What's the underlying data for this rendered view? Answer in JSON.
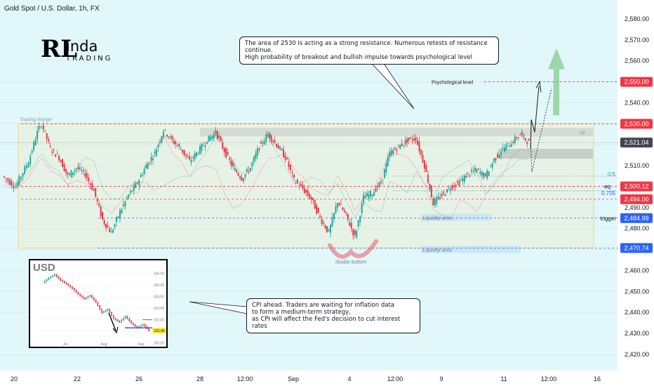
{
  "header": {
    "title": "Gold Spot / U.S. Dollar, 1h, FX"
  },
  "logo": {
    "mark": "RL",
    "name": "inda",
    "sub": "TRADING"
  },
  "notes": {
    "resistance": "The area of 2530 is acting as a strong resistance. Numerous retests of resistance continue.\nHigh probability of breakout and bullish impulse towards psychological level",
    "cpi": "CPI ahead. Traders are waiting for inflation data\nto form a medium-term strategy,\nas CPI will affect the Fed's decision to cut interest rates"
  },
  "colors": {
    "background": "#e2f7fa",
    "up": "#26a69a",
    "down": "#e53946",
    "level_red": "#f23645",
    "level_blue": "#2962ff",
    "range": "#f7d38a"
  },
  "chart_data": {
    "type": "candlestick",
    "title": "Gold Spot / U.S. Dollar, 1h, FX",
    "ylim": [
      2415,
      2585
    ],
    "y_ticks": [
      2420,
      2430,
      2440,
      2450,
      2460,
      2470,
      2480,
      2490,
      2500,
      2510,
      2520,
      2530,
      2540,
      2550,
      2560,
      2570,
      2580
    ],
    "x_ticks": [
      "20",
      "22",
      "26",
      "28",
      "12:00",
      "Sep",
      "4",
      "12:00",
      "9",
      "11",
      "12:00",
      "16"
    ],
    "current_price": 2521.04,
    "price_labels": [
      {
        "value": 2550.0,
        "text": "2,550.00",
        "color": "#f23645"
      },
      {
        "value": 2530.0,
        "text": "2,530.00",
        "color": "#f23645"
      },
      {
        "value": 2521.04,
        "text": "2,521.04",
        "color": "#434651"
      },
      {
        "value": 2500.12,
        "text": "2,500.12",
        "color": "#f23645"
      },
      {
        "value": 2494.0,
        "text": "2,494.00",
        "color": "#f23645"
      },
      {
        "value": 2484.99,
        "text": "2,484.99",
        "color": "#2962ff"
      },
      {
        "value": 2470.74,
        "text": "2,470.74",
        "color": "#2962ff"
      }
    ],
    "annotations": [
      {
        "text": "Trading Range",
        "kind": "range-label"
      },
      {
        "text": "Psychological level",
        "kind": "level"
      },
      {
        "text": "Liquidity area",
        "kind": "zone-upper"
      },
      {
        "text": "Liquidity area",
        "kind": "zone-lower"
      },
      {
        "text": "double bottom",
        "kind": "pattern"
      },
      {
        "text": "eq",
        "kind": "level"
      },
      {
        "text": "0.705",
        "kind": "fib"
      },
      {
        "text": "0.5",
        "kind": "fib"
      },
      {
        "text": "trigger",
        "kind": "level"
      },
      {
        "text": "ob",
        "kind": "zone"
      }
    ],
    "price_path": [
      {
        "x": 0,
        "y": 2505
      },
      {
        "x": 3,
        "y": 2500
      },
      {
        "x": 6,
        "y": 2512
      },
      {
        "x": 8,
        "y": 2526
      },
      {
        "x": 9,
        "y": 2530
      },
      {
        "x": 11,
        "y": 2518
      },
      {
        "x": 13,
        "y": 2514
      },
      {
        "x": 15,
        "y": 2505
      },
      {
        "x": 17,
        "y": 2509
      },
      {
        "x": 19,
        "y": 2506
      },
      {
        "x": 21,
        "y": 2498
      },
      {
        "x": 23,
        "y": 2484
      },
      {
        "x": 25,
        "y": 2478
      },
      {
        "x": 27,
        "y": 2488
      },
      {
        "x": 29,
        "y": 2496
      },
      {
        "x": 31,
        "y": 2502
      },
      {
        "x": 33,
        "y": 2510
      },
      {
        "x": 35,
        "y": 2516
      },
      {
        "x": 37,
        "y": 2527
      },
      {
        "x": 39,
        "y": 2522
      },
      {
        "x": 41,
        "y": 2518
      },
      {
        "x": 43,
        "y": 2512
      },
      {
        "x": 45,
        "y": 2517
      },
      {
        "x": 47,
        "y": 2522
      },
      {
        "x": 49,
        "y": 2526
      },
      {
        "x": 51,
        "y": 2517
      },
      {
        "x": 53,
        "y": 2509
      },
      {
        "x": 55,
        "y": 2504
      },
      {
        "x": 57,
        "y": 2509
      },
      {
        "x": 59,
        "y": 2519
      },
      {
        "x": 61,
        "y": 2525
      },
      {
        "x": 63,
        "y": 2520
      },
      {
        "x": 65,
        "y": 2514
      },
      {
        "x": 67,
        "y": 2503
      },
      {
        "x": 69,
        "y": 2499
      },
      {
        "x": 71,
        "y": 2494
      },
      {
        "x": 73,
        "y": 2485
      },
      {
        "x": 75,
        "y": 2478
      },
      {
        "x": 77,
        "y": 2493
      },
      {
        "x": 79,
        "y": 2486
      },
      {
        "x": 81,
        "y": 2476
      },
      {
        "x": 83,
        "y": 2495
      },
      {
        "x": 85,
        "y": 2497
      },
      {
        "x": 87,
        "y": 2502
      },
      {
        "x": 89,
        "y": 2516
      },
      {
        "x": 91,
        "y": 2519
      },
      {
        "x": 93,
        "y": 2522
      },
      {
        "x": 95,
        "y": 2523
      },
      {
        "x": 97,
        "y": 2510
      },
      {
        "x": 99,
        "y": 2492
      },
      {
        "x": 101,
        "y": 2496
      },
      {
        "x": 103,
        "y": 2500
      },
      {
        "x": 105,
        "y": 2502
      },
      {
        "x": 107,
        "y": 2506
      },
      {
        "x": 109,
        "y": 2508
      },
      {
        "x": 111,
        "y": 2505
      },
      {
        "x": 113,
        "y": 2513
      },
      {
        "x": 115,
        "y": 2518
      },
      {
        "x": 117,
        "y": 2521
      },
      {
        "x": 119,
        "y": 2525
      },
      {
        "x": 121,
        "y": 2521
      }
    ],
    "inset": {
      "title": "USD",
      "y_ticks": [
        "106.00",
        "105.00",
        "104.00",
        "103.00",
        "102.00",
        "101.00",
        "100.00"
      ],
      "x_ticks": [
        "Jul",
        "Aug",
        "Sep"
      ],
      "price_tag": "101.06",
      "path": [
        105.2,
        105.6,
        105.9,
        105.4,
        105.1,
        104.7,
        104.2,
        103.8,
        104.1,
        103.5,
        102.6,
        102.9,
        102.1,
        101.8,
        102.3,
        101.7,
        101.3,
        101.6,
        101.06
      ]
    }
  }
}
